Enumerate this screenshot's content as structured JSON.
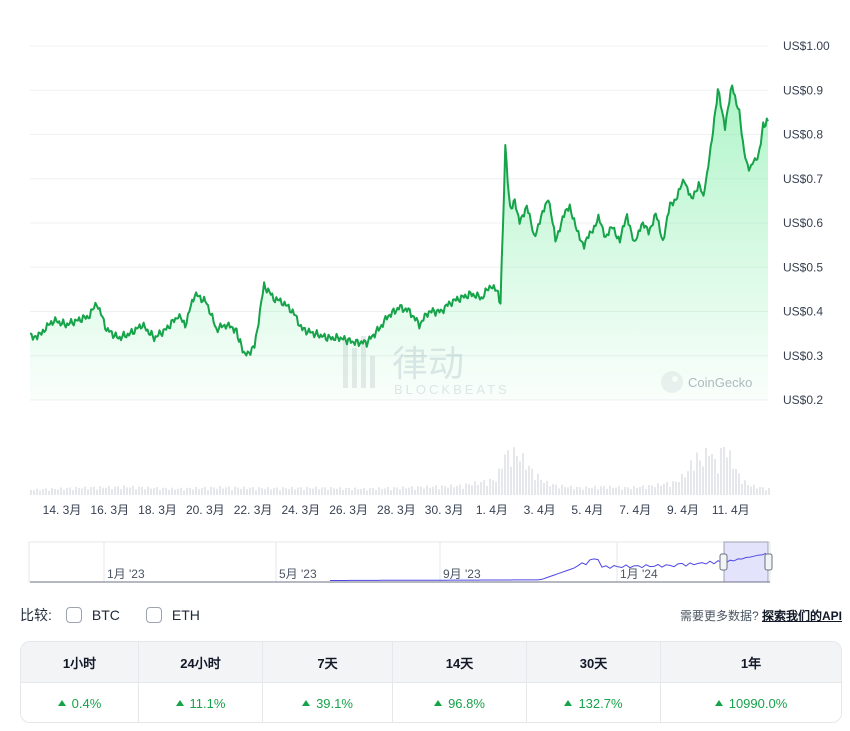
{
  "chart_data": {
    "type": "line",
    "y_ticks": [
      "US$1.00",
      "US$0.9",
      "US$0.8",
      "US$0.7",
      "US$0.6",
      "US$0.5",
      "US$0.4",
      "US$0.3",
      "US$0.2"
    ],
    "y_values": [
      1.0,
      0.9,
      0.8,
      0.7,
      0.6,
      0.5,
      0.4,
      0.3,
      0.2
    ],
    "ylim": [
      0.2,
      1.0
    ],
    "x_ticks": [
      "14. 3月",
      "16. 3月",
      "18. 3月",
      "20. 3月",
      "22. 3月",
      "24. 3月",
      "26. 3月",
      "28. 3月",
      "30. 3月",
      "1. 4月",
      "3. 4月",
      "5. 4月",
      "7. 4月",
      "9. 4月",
      "11. 4月"
    ],
    "x_range_days": [
      0,
      30.9
    ],
    "price_series": {
      "day": [
        0,
        0.3,
        0.6,
        1.0,
        1.5,
        2.0,
        2.5,
        2.8,
        3.2,
        3.7,
        4.2,
        4.7,
        5.2,
        5.7,
        6.2,
        6.5,
        6.9,
        7.4,
        7.8,
        8.2,
        8.6,
        8.8,
        9.0,
        9.4,
        9.8,
        10.2,
        10.6,
        11.0,
        11.4,
        11.9,
        12.5,
        13.0,
        13.6,
        14.1,
        14.6,
        15.0,
        15.5,
        15.9,
        16.3,
        16.7,
        17.2,
        17.6,
        18.0,
        18.5,
        18.9,
        19.3,
        19.6,
        19.7,
        19.8,
        19.9,
        20.1,
        20.3,
        20.5,
        20.8,
        21.1,
        21.4,
        21.7,
        22.0,
        22.3,
        22.6,
        22.9,
        23.2,
        23.5,
        23.8,
        24.1,
        24.4,
        24.7,
        25.0,
        25.3,
        25.6,
        25.9,
        26.2,
        26.5,
        26.8,
        27.1,
        27.4,
        27.7,
        28.0,
        28.2,
        28.4,
        28.6,
        28.8,
        29.1,
        29.4,
        29.7,
        29.9,
        30.1,
        30.3,
        30.5,
        30.7,
        30.9
      ],
      "price": [
        0.35,
        0.34,
        0.36,
        0.38,
        0.37,
        0.38,
        0.39,
        0.42,
        0.36,
        0.34,
        0.35,
        0.37,
        0.34,
        0.36,
        0.39,
        0.37,
        0.44,
        0.42,
        0.36,
        0.37,
        0.36,
        0.33,
        0.3,
        0.32,
        0.46,
        0.43,
        0.42,
        0.4,
        0.36,
        0.35,
        0.34,
        0.34,
        0.33,
        0.33,
        0.36,
        0.39,
        0.41,
        0.4,
        0.37,
        0.4,
        0.4,
        0.42,
        0.43,
        0.44,
        0.43,
        0.46,
        0.44,
        0.42,
        0.59,
        0.77,
        0.63,
        0.65,
        0.6,
        0.64,
        0.57,
        0.61,
        0.66,
        0.56,
        0.61,
        0.64,
        0.58,
        0.55,
        0.58,
        0.61,
        0.57,
        0.59,
        0.56,
        0.62,
        0.55,
        0.6,
        0.58,
        0.62,
        0.56,
        0.64,
        0.66,
        0.7,
        0.65,
        0.69,
        0.66,
        0.73,
        0.81,
        0.9,
        0.82,
        0.91,
        0.85,
        0.76,
        0.72,
        0.74,
        0.75,
        0.82,
        0.83
      ]
    },
    "volume_series": {
      "day": [
        0,
        2,
        4,
        6,
        8,
        10,
        12,
        14,
        16,
        18,
        19.5,
        19.8,
        20.2,
        20.6,
        21.0,
        21.5,
        22,
        23,
        24,
        25,
        26,
        27,
        27.5,
        27.8,
        28.1,
        28.4,
        28.7,
        29.0,
        29.3,
        29.6,
        30,
        30.5,
        30.9
      ],
      "volume": [
        0.1,
        0.14,
        0.16,
        0.12,
        0.15,
        0.13,
        0.14,
        0.12,
        0.15,
        0.18,
        0.3,
        0.75,
        0.82,
        0.7,
        0.45,
        0.25,
        0.18,
        0.14,
        0.16,
        0.14,
        0.18,
        0.25,
        0.45,
        0.78,
        0.62,
        0.92,
        0.55,
        0.95,
        0.72,
        0.4,
        0.2,
        0.15,
        0.12
      ]
    },
    "navigator": {
      "labels": [
        "1月 '23",
        "5月 '23",
        "9月 '23",
        "1月 '24"
      ]
    },
    "watermarks": [
      "律动",
      "BLOCKBEATS",
      "CoinGecko"
    ]
  },
  "compare": {
    "label": "比较:",
    "options": [
      "BTC",
      "ETH"
    ],
    "api_prompt": "需要更多数据?",
    "api_link": "探索我们的API"
  },
  "performance": {
    "periods": [
      "1小时",
      "24小时",
      "7天",
      "14天",
      "30天",
      "1年"
    ],
    "values": [
      "0.4%",
      "11.1%",
      "39.1%",
      "96.8%",
      "132.7%",
      "10990.0%"
    ]
  },
  "colors": {
    "line": "#16a34a",
    "fill_top": "#86efac",
    "volume": "#e5e7eb",
    "nav_line": "#4f46e5",
    "positive": "#16a34a"
  }
}
